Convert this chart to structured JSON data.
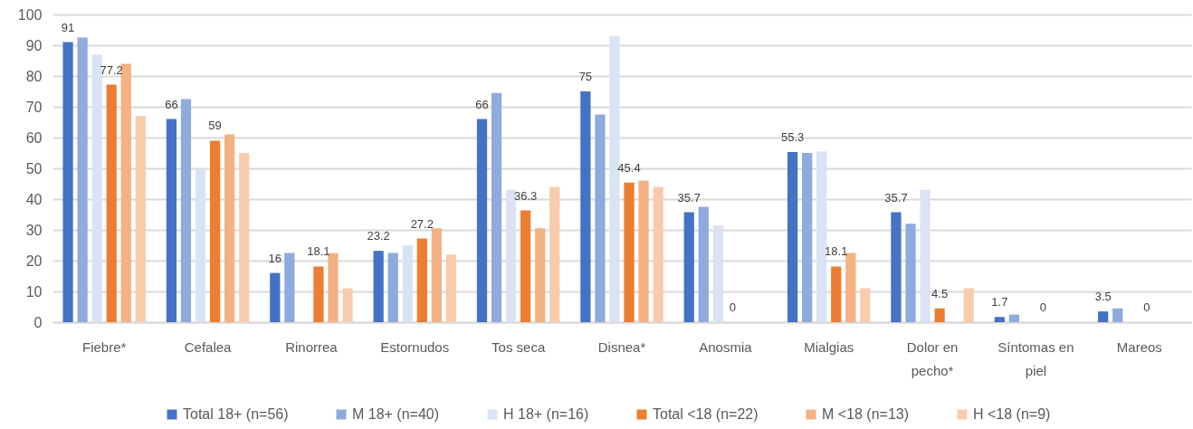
{
  "chart_data": {
    "type": "bar",
    "categories": [
      "Fiebre*",
      "Cefalea",
      "Rinorrea",
      "Estornudos",
      "Tos seca",
      "Disnea*",
      "Anosmia",
      "Mialgias",
      "Dolor en pecho*",
      "Síntomas en piel",
      "Mareos"
    ],
    "series": [
      {
        "name": "Total 18+ (n=56)",
        "color": "#4472c4",
        "values": [
          91,
          66,
          16,
          23.2,
          66,
          75,
          35.7,
          55.3,
          35.7,
          1.7,
          3.5
        ],
        "value_labels": [
          "91",
          "66",
          "16",
          "23.2",
          "66",
          "75",
          "35.7",
          "55.3",
          "35.7",
          "1.7",
          "3.5"
        ]
      },
      {
        "name": "M 18+ (n=40)",
        "color": "#8faadc",
        "values": [
          92.5,
          72.5,
          22.5,
          22.5,
          74.5,
          67.5,
          37.5,
          55,
          32,
          2.5,
          4.5
        ]
      },
      {
        "name": "H 18+ (n=16)",
        "color": "#dae3f3",
        "values": [
          87,
          49.5,
          null,
          25,
          43,
          93,
          31.5,
          55.5,
          43,
          null,
          null
        ]
      },
      {
        "name": "Total <18 (n=22)",
        "color": "#ed7d31",
        "values": [
          77.2,
          59,
          18.1,
          27.2,
          36.3,
          45.4,
          0,
          18.1,
          4.5,
          0,
          0
        ],
        "value_labels": [
          "77.2",
          "59",
          "18.1",
          "27.2",
          "36.3",
          "45.4",
          "0",
          "18.1",
          "4.5",
          "0",
          "0"
        ]
      },
      {
        "name": "M <18 (n=13)",
        "color": "#f4b183",
        "values": [
          84,
          61,
          22.5,
          30.5,
          30.5,
          46,
          null,
          22.5,
          null,
          null,
          null
        ]
      },
      {
        "name": "H <18 (n=9)",
        "color": "#f8cbad",
        "values": [
          67,
          55,
          11,
          22,
          44,
          44,
          null,
          11,
          11,
          null,
          null
        ]
      }
    ],
    "ylim": [
      0,
      100
    ],
    "yticks": [
      0,
      10,
      20,
      30,
      40,
      50,
      60,
      70,
      80,
      90,
      100
    ],
    "grid": "y",
    "legend": "bottom"
  }
}
